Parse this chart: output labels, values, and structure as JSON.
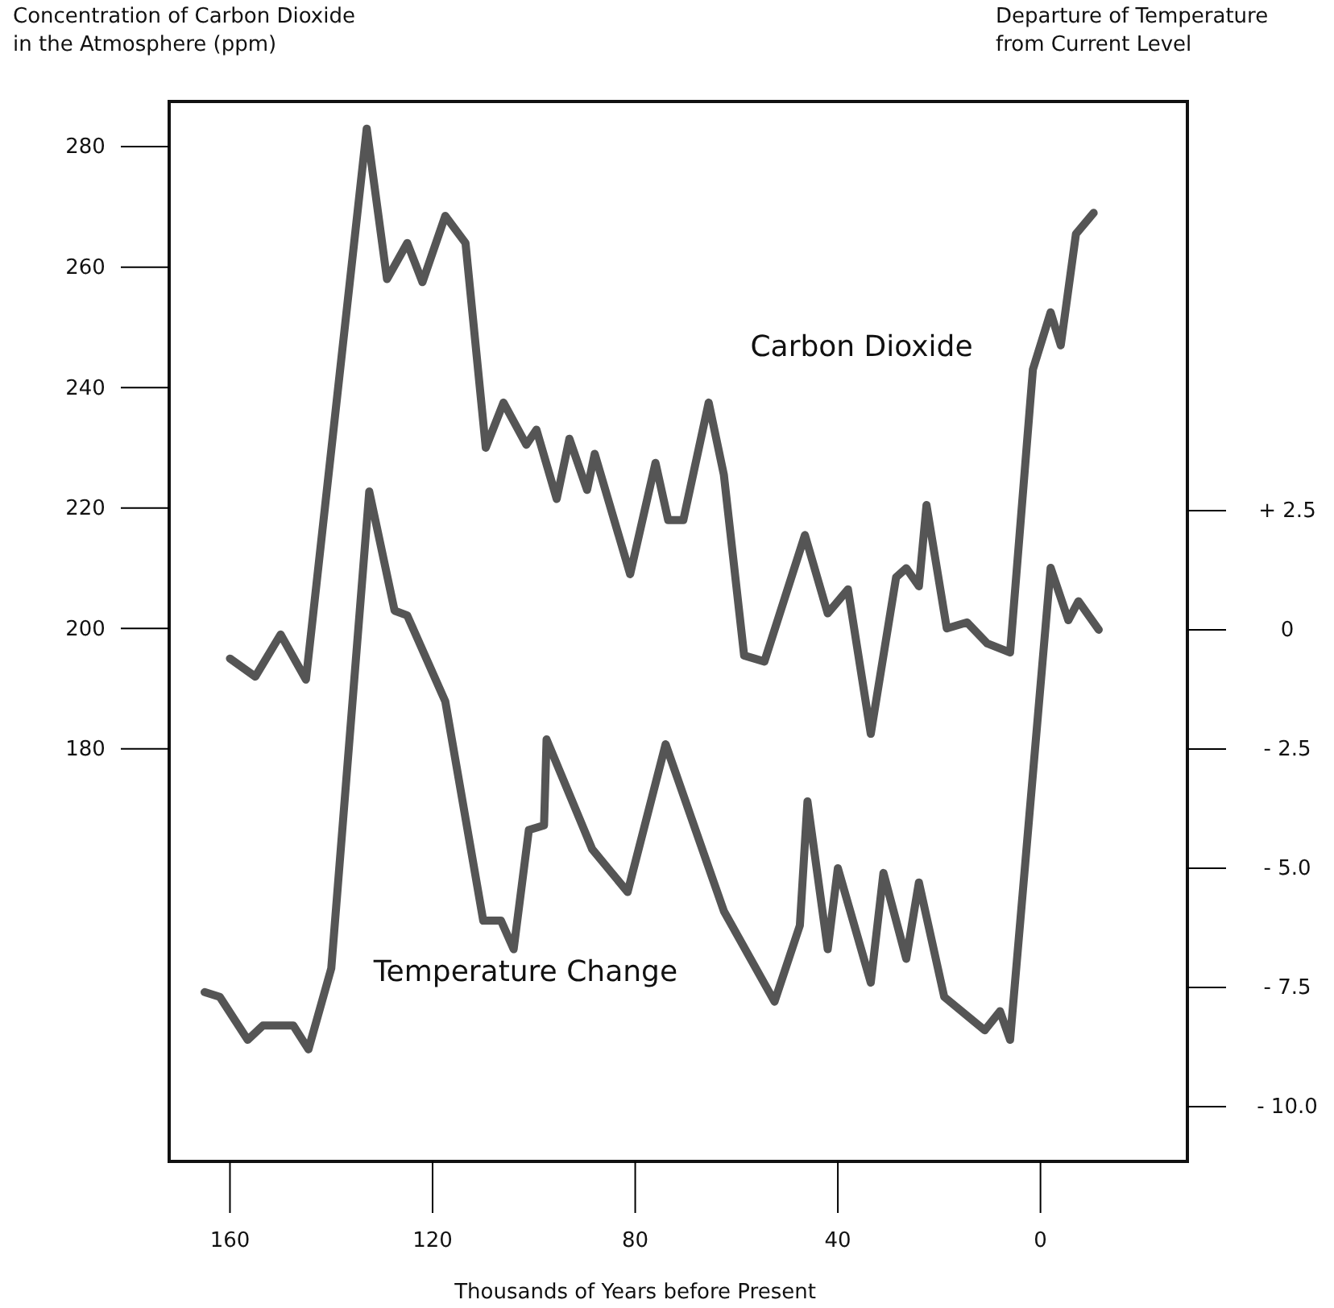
{
  "chart_data": {
    "type": "line",
    "xlabel": "Thousands of Years before Present",
    "ylabel": "Concentration of Carbon Dioxide in the Atmosphere (ppm)",
    "y2label": "Departure of Temperature from Current Level",
    "xlim": [
      172,
      -29
    ],
    "xticks": [
      160,
      120,
      80,
      40,
      0
    ],
    "ylim": [
      111.5,
      287.5
    ],
    "yticks": [
      180,
      200,
      220,
      240,
      260,
      280
    ],
    "y2lim": [
      -11.15,
      11.08
    ],
    "y2ticks": [
      {
        "value": 2.5,
        "label": "+ 2.5"
      },
      0,
      {
        "value": -2.5,
        "label": "- 2.5"
      },
      {
        "value": -5,
        "label": "- 5.0"
      },
      {
        "value": -7.5,
        "label": "- 7.5"
      },
      {
        "value": -10,
        "label": "- 10.0"
      }
    ],
    "grid": false,
    "legend": false,
    "line_style": "solid",
    "marker": "none",
    "series": [
      {
        "name": "Carbon Dioxide",
        "color": "#555555",
        "x": [
          160,
          155,
          150,
          145,
          133,
          129,
          125,
          122,
          117.5,
          113.5,
          109.5,
          106,
          101.5,
          99.5,
          95.5,
          93,
          89.5,
          88,
          81,
          76,
          73.5,
          70.5,
          65.5,
          62.5,
          58.5,
          54.5,
          46.5,
          42,
          38,
          33.5,
          28.5,
          26.5,
          24,
          22.5,
          18.5,
          14.5,
          10.5,
          6,
          1.5,
          -2,
          -4,
          -7,
          -10.5
        ],
        "values": [
          195,
          192,
          199,
          191.5,
          283,
          258,
          264,
          257.5,
          268.5,
          264,
          230,
          237.5,
          230.5,
          233,
          221.5,
          231.5,
          223,
          229,
          209,
          227.5,
          218,
          218,
          237.5,
          225.5,
          195.5,
          194.5,
          215.5,
          202.5,
          206.5,
          182.5,
          208.5,
          210,
          207,
          220.5,
          200,
          201,
          197.5,
          196,
          243,
          252.5,
          247,
          265.5,
          269
        ]
      },
      {
        "name": "Temperature Change",
        "color": "#555555",
        "axis": "y2",
        "x": [
          165,
          162,
          156.5,
          153.5,
          147.5,
          144.5,
          140,
          132.5,
          127.5,
          125,
          117.5,
          110,
          106.5,
          104,
          101,
          98,
          97.5,
          88.5,
          81.5,
          74,
          62.5,
          52.5,
          47.5,
          46,
          42,
          40,
          33.5,
          31,
          26.5,
          24,
          19,
          11,
          8,
          6,
          -2,
          -5.5,
          -7.5,
          -11.5
        ],
        "values": [
          -7.6,
          -7.7,
          -8.6,
          -8.3,
          -8.3,
          -8.8,
          -7.1,
          2.9,
          0.4,
          0.3,
          -1.5,
          -6.1,
          -6.1,
          -6.7,
          -4.2,
          -4.1,
          -2.3,
          -4.6,
          -5.5,
          -2.4,
          -5.9,
          -7.8,
          -6.2,
          -3.6,
          -6.7,
          -5,
          -7.4,
          -5.1,
          -6.9,
          -5.3,
          -7.7,
          -8.4,
          -8,
          -8.6,
          1.3,
          0.2,
          0.6,
          0
        ]
      }
    ]
  }
}
